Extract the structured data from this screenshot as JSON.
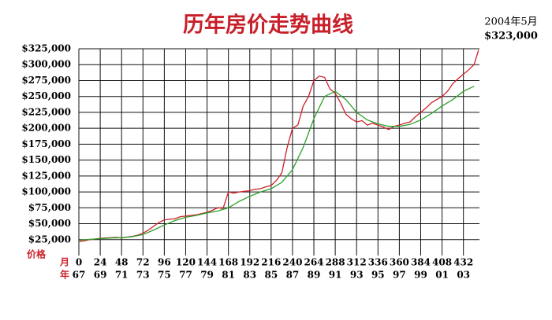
{
  "chart_data": {
    "type": "line",
    "title": "历年房价走势曲线",
    "annotation": [
      "2004年5月",
      "$323,000"
    ],
    "y_label": "价格",
    "x_label": "月",
    "year_label": "年",
    "xlim": [
      0,
      450
    ],
    "xticks": [
      0,
      24,
      48,
      72,
      96,
      120,
      144,
      168,
      192,
      216,
      240,
      264,
      288,
      312,
      336,
      360,
      384,
      408,
      432
    ],
    "year_labels": [
      "67",
      "69",
      "71",
      "73",
      "75",
      "77",
      "79",
      "81",
      "83",
      "85",
      "87",
      "89",
      "91",
      "93",
      "95",
      "97",
      "99",
      "01",
      "03"
    ],
    "ylim": [
      0,
      325000
    ],
    "yticks": [
      {
        "value": 25000,
        "label": "$25,000"
      },
      {
        "value": 50000,
        "label": "$50,000"
      },
      {
        "value": 75000,
        "label": "$75,000"
      },
      {
        "value": 100000,
        "label": "$100,000"
      },
      {
        "value": 125000,
        "label": "$125,000"
      },
      {
        "value": 150000,
        "label": "$150,000"
      },
      {
        "value": 175000,
        "label": "$175,000"
      },
      {
        "value": 200000,
        "label": "$200,000"
      },
      {
        "value": 225000,
        "label": "$225,000"
      },
      {
        "value": 250000,
        "label": "$250,000"
      },
      {
        "value": 275000,
        "label": "$275,000"
      },
      {
        "value": 300000,
        "label": "$300,000"
      },
      {
        "value": 325000,
        "label": "$325,000"
      }
    ],
    "grid": true,
    "series": [
      {
        "color": "#d0202a",
        "x": [
          0,
          6,
          12,
          18,
          24,
          30,
          36,
          42,
          48,
          54,
          60,
          66,
          72,
          78,
          84,
          90,
          96,
          102,
          108,
          114,
          120,
          126,
          132,
          138,
          144,
          150,
          156,
          162,
          168,
          174,
          180,
          186,
          192,
          198,
          204,
          210,
          216,
          222,
          228,
          234,
          240,
          246,
          252,
          258,
          264,
          270,
          276,
          282,
          288,
          294,
          300,
          306,
          312,
          318,
          324,
          330,
          336,
          342,
          348,
          354,
          360,
          366,
          372,
          378,
          384,
          390,
          396,
          402,
          408,
          414,
          420,
          426,
          432,
          438,
          444,
          449
        ],
        "values": [
          22000,
          23000,
          25000,
          26000,
          27000,
          27500,
          28000,
          28500,
          27500,
          29000,
          30000,
          32000,
          35000,
          40000,
          46000,
          52000,
          56000,
          57000,
          58000,
          61000,
          62000,
          63000,
          64000,
          66000,
          68000,
          71000,
          75000,
          74000,
          100000,
          98000,
          100000,
          101000,
          102000,
          104000,
          105000,
          108000,
          110000,
          118000,
          130000,
          170000,
          200000,
          205000,
          235000,
          250000,
          275000,
          282000,
          280000,
          262000,
          255000,
          240000,
          222000,
          215000,
          210000,
          212000,
          205000,
          208000,
          205000,
          202000,
          198000,
          203000,
          205000,
          208000,
          210000,
          218000,
          225000,
          232000,
          240000,
          245000,
          250000,
          258000,
          270000,
          278000,
          285000,
          292000,
          300000,
          323000
        ]
      },
      {
        "color": "#2aa02a",
        "x": [
          0,
          12,
          24,
          36,
          48,
          60,
          72,
          84,
          96,
          108,
          120,
          132,
          144,
          156,
          168,
          180,
          192,
          204,
          216,
          228,
          240,
          252,
          264,
          276,
          288,
          300,
          312,
          324,
          336,
          348,
          360,
          372,
          384,
          396,
          408,
          420,
          432,
          444
        ],
        "values": [
          24000,
          25500,
          26500,
          27500,
          28000,
          29500,
          33000,
          40000,
          48000,
          55000,
          60000,
          63000,
          67000,
          70000,
          75000,
          85000,
          93000,
          100000,
          105000,
          115000,
          135000,
          170000,
          215000,
          250000,
          258000,
          245000,
          225000,
          213000,
          207000,
          203000,
          203000,
          206000,
          213000,
          223000,
          235000,
          245000,
          258000,
          266000
        ]
      }
    ]
  }
}
